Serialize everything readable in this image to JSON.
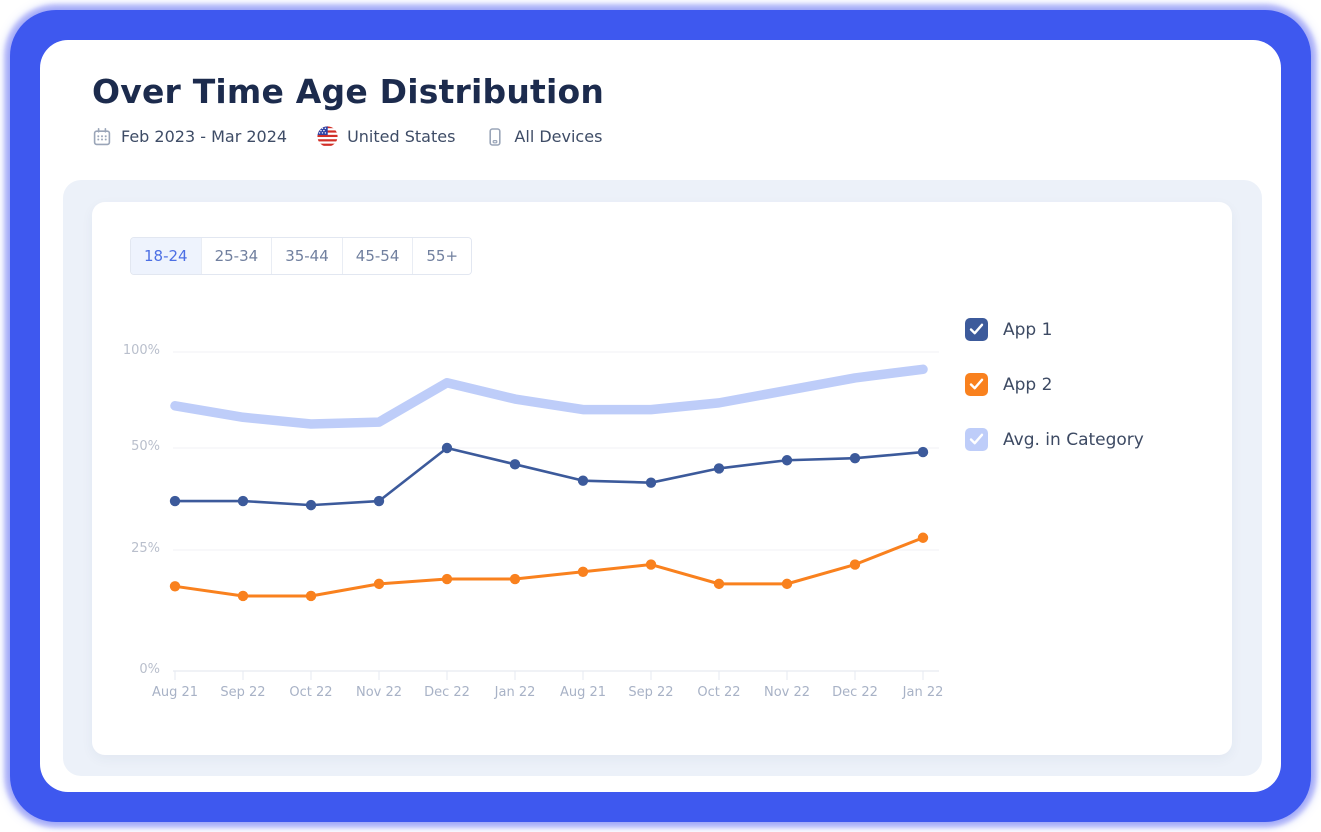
{
  "header": {
    "title": "Over Time Age Distribution",
    "date_range": "Feb 2023 - Mar 2024",
    "country": "United States",
    "devices": "All Devices"
  },
  "age_tabs": {
    "options": [
      "18-24",
      "25-34",
      "35-44",
      "45-54",
      "55+"
    ],
    "selected": "18-24"
  },
  "legend": [
    {
      "label": "App 1",
      "color": "#3C5A9B",
      "checked": true
    },
    {
      "label": "App 2",
      "color": "#F9811E",
      "checked": true
    },
    {
      "label": "Avg. in Category",
      "color": "#BECDF9",
      "checked": true
    }
  ],
  "colors": {
    "frame_blue": "#3E58EF",
    "panel_bg": "#ECF1F9",
    "title_text": "#1C2B4D",
    "selected_tab_text": "#4C6FE4",
    "app1_line": "#3C5A9B",
    "app2_line": "#F9811E",
    "avg_band": "#BECDF9",
    "gridline": "#F0F2F6",
    "axis_line": "#E6EAF1"
  },
  "chart_data": {
    "type": "line",
    "title": "Over Time Age Distribution - 18-24",
    "x": [
      "Aug 21",
      "Sep 22",
      "Oct 22",
      "Nov 22",
      "Dec 22",
      "Jan 22",
      "Aug 21",
      "Sep 22",
      "Oct 22",
      "Nov 22",
      "Dec 22",
      "Jan 22"
    ],
    "xlabel": "",
    "ylabel": "",
    "y_tick_labels": [
      "0%",
      "25%",
      "50%",
      "100%"
    ],
    "y_tick_values": [
      0,
      25,
      50,
      100
    ],
    "axis_note": "y ticks 0/25/50/100 are drawn nearly evenly spaced (non-linear scale)",
    "legend_position": "right",
    "series": [
      {
        "name": "Avg. in Category",
        "style": "thick-band",
        "color": "#BECDF9",
        "values": [
          72,
          66,
          62.5,
          63.5,
          84,
          75.5,
          70,
          70,
          73.5,
          80,
          86.5,
          91
        ]
      },
      {
        "name": "App 1",
        "style": "line-dots",
        "color": "#3C5A9B",
        "values": [
          37,
          37,
          36,
          37,
          50,
          46,
          42,
          41.5,
          45,
          47,
          47.5,
          49
        ]
      },
      {
        "name": "App 2",
        "style": "line-dots",
        "color": "#F9811E",
        "values": [
          17.5,
          15.5,
          15.5,
          18,
          19,
          19,
          20.5,
          22,
          18,
          18,
          22,
          28
        ]
      }
    ]
  }
}
